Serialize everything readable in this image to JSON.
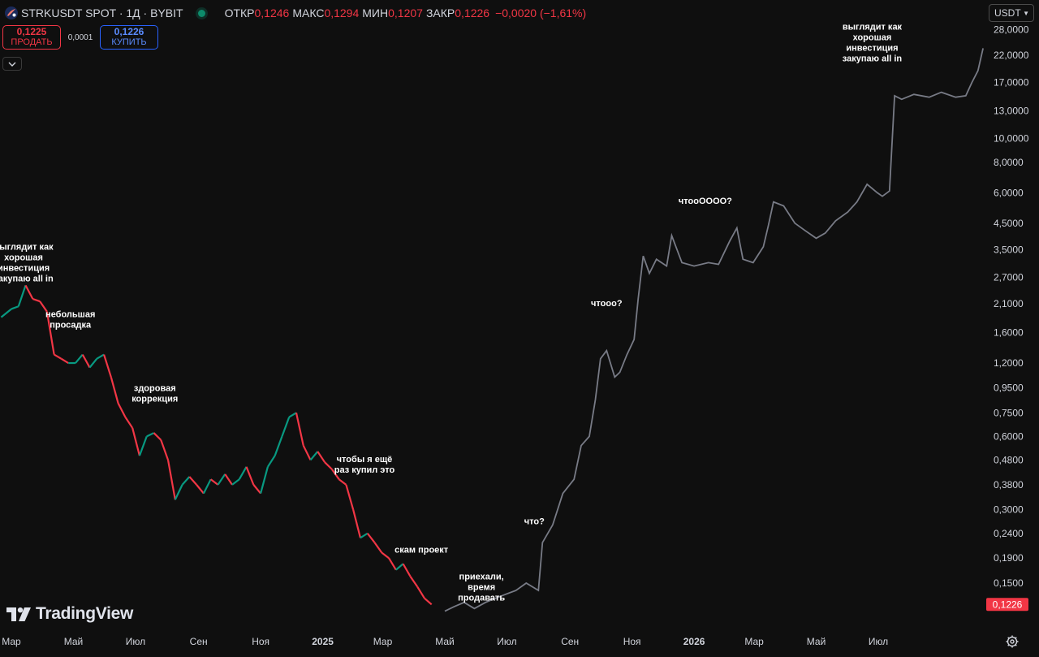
{
  "header": {
    "symbol": "STRKUSDT SPOT · 1Д · BYBIT",
    "open_label": "ОТКР",
    "open": "0,1246",
    "high_label": "МАКС",
    "high": "0,1294",
    "low_label": "МИН",
    "low": "0,1207",
    "close_label": "ЗАКР",
    "close": "0,1226",
    "change": "−0,0020 (−1,61%)"
  },
  "trade": {
    "sell_price": "0,1225",
    "sell_label": "ПРОДАТЬ",
    "spread": "0,0001",
    "buy_price": "0,1226",
    "buy_label": "КУПИТЬ"
  },
  "currency": "USDT",
  "brand": "TradingView",
  "colors": {
    "up": "#089981",
    "down": "#f23645",
    "projection": "#787b86",
    "background": "#0f0f0f",
    "text": "#d1d4dc"
  },
  "chart_data": {
    "type": "line",
    "scale": "log",
    "grid": false,
    "y_ticks": [
      {
        "v": 28,
        "label": "28,0000"
      },
      {
        "v": 22,
        "label": "22,0000"
      },
      {
        "v": 17,
        "label": "17,0000"
      },
      {
        "v": 13,
        "label": "13,0000"
      },
      {
        "v": 10,
        "label": "10,0000"
      },
      {
        "v": 8,
        "label": "8,0000"
      },
      {
        "v": 6,
        "label": "6,0000"
      },
      {
        "v": 4.5,
        "label": "4,5000"
      },
      {
        "v": 3.5,
        "label": "3,5000"
      },
      {
        "v": 2.7,
        "label": "2,7000"
      },
      {
        "v": 2.1,
        "label": "2,1000"
      },
      {
        "v": 1.6,
        "label": "1,6000"
      },
      {
        "v": 1.2,
        "label": "1,2000"
      },
      {
        "v": 0.95,
        "label": "0,9500"
      },
      {
        "v": 0.75,
        "label": "0,7500"
      },
      {
        "v": 0.6,
        "label": "0,6000"
      },
      {
        "v": 0.48,
        "label": "0,4800"
      },
      {
        "v": 0.38,
        "label": "0,3800"
      },
      {
        "v": 0.3,
        "label": "0,3000"
      },
      {
        "v": 0.24,
        "label": "0,2400"
      },
      {
        "v": 0.19,
        "label": "0,1900"
      },
      {
        "v": 0.15,
        "label": "0,1500"
      }
    ],
    "current_price": {
      "v": 0.1226,
      "label": "0,1226"
    },
    "x_ticks": [
      {
        "label": "Мар",
        "date": "2024-03-01",
        "bold": false
      },
      {
        "label": "Май",
        "date": "2024-05-01",
        "bold": false
      },
      {
        "label": "Июл",
        "date": "2024-07-01",
        "bold": false
      },
      {
        "label": "Сен",
        "date": "2024-09-01",
        "bold": false
      },
      {
        "label": "Ноя",
        "date": "2024-11-01",
        "bold": false
      },
      {
        "label": "2025",
        "date": "2025-01-01",
        "bold": true
      },
      {
        "label": "Мар",
        "date": "2025-03-01",
        "bold": false
      },
      {
        "label": "Май",
        "date": "2025-05-01",
        "bold": false
      },
      {
        "label": "Июл",
        "date": "2025-07-01",
        "bold": false
      },
      {
        "label": "Сен",
        "date": "2025-09-01",
        "bold": false
      },
      {
        "label": "Ноя",
        "date": "2025-11-01",
        "bold": false
      },
      {
        "label": "2026",
        "date": "2026-01-01",
        "bold": true
      },
      {
        "label": "Мар",
        "date": "2026-03-01",
        "bold": false
      },
      {
        "label": "Май",
        "date": "2026-05-01",
        "bold": false
      },
      {
        "label": "Июл",
        "date": "2026-07-01",
        "bold": false
      }
    ],
    "price_series": [
      [
        "2024-02-20",
        1.85
      ],
      [
        "2024-03-01",
        2.0
      ],
      [
        "2024-03-08",
        2.05
      ],
      [
        "2024-03-15",
        2.5
      ],
      [
        "2024-03-22",
        2.2
      ],
      [
        "2024-03-29",
        2.15
      ],
      [
        "2024-04-05",
        1.95
      ],
      [
        "2024-04-12",
        1.3
      ],
      [
        "2024-04-19",
        1.25
      ],
      [
        "2024-04-26",
        1.2
      ],
      [
        "2024-05-03",
        1.2
      ],
      [
        "2024-05-10",
        1.3
      ],
      [
        "2024-05-17",
        1.15
      ],
      [
        "2024-05-24",
        1.25
      ],
      [
        "2024-05-31",
        1.3
      ],
      [
        "2024-06-07",
        1.05
      ],
      [
        "2024-06-14",
        0.82
      ],
      [
        "2024-06-21",
        0.72
      ],
      [
        "2024-06-28",
        0.65
      ],
      [
        "2024-07-05",
        0.5
      ],
      [
        "2024-07-12",
        0.6
      ],
      [
        "2024-07-19",
        0.62
      ],
      [
        "2024-07-26",
        0.58
      ],
      [
        "2024-08-02",
        0.48
      ],
      [
        "2024-08-09",
        0.33
      ],
      [
        "2024-08-16",
        0.38
      ],
      [
        "2024-08-23",
        0.41
      ],
      [
        "2024-08-30",
        0.38
      ],
      [
        "2024-09-06",
        0.35
      ],
      [
        "2024-09-13",
        0.4
      ],
      [
        "2024-09-20",
        0.38
      ],
      [
        "2024-09-27",
        0.42
      ],
      [
        "2024-10-04",
        0.38
      ],
      [
        "2024-10-11",
        0.4
      ],
      [
        "2024-10-18",
        0.45
      ],
      [
        "2024-10-25",
        0.38
      ],
      [
        "2024-11-01",
        0.35
      ],
      [
        "2024-11-08",
        0.45
      ],
      [
        "2024-11-15",
        0.5
      ],
      [
        "2024-11-22",
        0.6
      ],
      [
        "2024-11-29",
        0.72
      ],
      [
        "2024-12-06",
        0.75
      ],
      [
        "2024-12-13",
        0.55
      ],
      [
        "2024-12-20",
        0.48
      ],
      [
        "2024-12-27",
        0.52
      ],
      [
        "2025-01-03",
        0.47
      ],
      [
        "2025-01-10",
        0.44
      ],
      [
        "2025-01-17",
        0.4
      ],
      [
        "2025-01-24",
        0.38
      ],
      [
        "2025-01-31",
        0.3
      ],
      [
        "2025-02-07",
        0.23
      ],
      [
        "2025-02-14",
        0.24
      ],
      [
        "2025-02-21",
        0.22
      ],
      [
        "2025-02-28",
        0.2
      ],
      [
        "2025-03-07",
        0.19
      ],
      [
        "2025-03-14",
        0.17
      ],
      [
        "2025-03-21",
        0.18
      ],
      [
        "2025-03-28",
        0.16
      ],
      [
        "2025-04-04",
        0.145
      ],
      [
        "2025-04-11",
        0.13
      ],
      [
        "2025-04-18",
        0.1226
      ]
    ],
    "projection_series": [
      [
        "2025-05-01",
        0.115
      ],
      [
        "2025-05-10",
        0.12
      ],
      [
        "2025-05-20",
        0.125
      ],
      [
        "2025-05-30",
        0.118
      ],
      [
        "2025-06-10",
        0.125
      ],
      [
        "2025-06-20",
        0.13
      ],
      [
        "2025-06-30",
        0.135
      ],
      [
        "2025-07-10",
        0.14
      ],
      [
        "2025-07-20",
        0.15
      ],
      [
        "2025-08-01",
        0.14
      ],
      [
        "2025-08-05",
        0.22
      ],
      [
        "2025-08-15",
        0.26
      ],
      [
        "2025-08-25",
        0.35
      ],
      [
        "2025-09-05",
        0.4
      ],
      [
        "2025-09-12",
        0.55
      ],
      [
        "2025-09-20",
        0.6
      ],
      [
        "2025-09-26",
        0.85
      ],
      [
        "2025-10-01",
        1.25
      ],
      [
        "2025-10-07",
        1.35
      ],
      [
        "2025-10-15",
        1.05
      ],
      [
        "2025-10-20",
        1.1
      ],
      [
        "2025-10-27",
        1.3
      ],
      [
        "2025-11-03",
        1.5
      ],
      [
        "2025-11-07",
        2.2
      ],
      [
        "2025-11-12",
        3.3
      ],
      [
        "2025-11-18",
        2.8
      ],
      [
        "2025-11-25",
        3.2
      ],
      [
        "2025-12-05",
        3.0
      ],
      [
        "2025-12-10",
        4.0
      ],
      [
        "2025-12-20",
        3.1
      ],
      [
        "2026-01-01",
        3.0
      ],
      [
        "2026-01-15",
        3.1
      ],
      [
        "2026-01-25",
        3.05
      ],
      [
        "2026-02-05",
        3.8
      ],
      [
        "2026-02-12",
        4.3
      ],
      [
        "2026-02-18",
        3.2
      ],
      [
        "2026-02-28",
        3.1
      ],
      [
        "2026-03-10",
        3.6
      ],
      [
        "2026-03-15",
        4.4
      ],
      [
        "2026-03-20",
        5.5
      ],
      [
        "2026-03-30",
        5.3
      ],
      [
        "2026-04-10",
        4.5
      ],
      [
        "2026-04-20",
        4.2
      ],
      [
        "2026-05-01",
        3.9
      ],
      [
        "2026-05-10",
        4.1
      ],
      [
        "2026-05-20",
        4.6
      ],
      [
        "2026-06-01",
        5.0
      ],
      [
        "2026-06-10",
        5.5
      ],
      [
        "2026-06-20",
        6.5
      ],
      [
        "2026-06-30",
        6.0
      ],
      [
        "2026-07-05",
        5.8
      ],
      [
        "2026-07-12",
        6.1
      ],
      [
        "2026-07-17",
        15.0
      ],
      [
        "2026-07-24",
        14.5
      ],
      [
        "2026-08-05",
        15.2
      ],
      [
        "2026-08-20",
        14.8
      ],
      [
        "2026-09-01",
        15.5
      ],
      [
        "2026-09-15",
        14.8
      ],
      [
        "2026-09-25",
        15.0
      ],
      [
        "2026-10-01",
        17.0
      ],
      [
        "2026-10-07",
        19.0
      ],
      [
        "2026-10-12",
        23.5
      ]
    ],
    "annotations": [
      {
        "date": "2024-03-13",
        "value": 3.5,
        "lines": [
          "выглядит как",
          "хорошая",
          "инвестиция",
          "закупаю all in"
        ]
      },
      {
        "date": "2024-04-28",
        "value": 1.85,
        "lines": [
          "небольшая",
          "просадка"
        ]
      },
      {
        "date": "2024-07-20",
        "value": 0.92,
        "lines": [
          "здоровая",
          "коррекция"
        ]
      },
      {
        "date": "2025-02-11",
        "value": 0.47,
        "lines": [
          "чтобы я ещё",
          "раз купил это"
        ]
      },
      {
        "date": "2025-04-08",
        "value": 0.2,
        "lines": [
          "скам проект"
        ]
      },
      {
        "date": "2025-06-06",
        "value": 0.155,
        "lines": [
          "приехали,",
          "время",
          "продавать"
        ]
      },
      {
        "date": "2025-07-28",
        "value": 0.262,
        "lines": [
          "что?"
        ]
      },
      {
        "date": "2025-10-07",
        "value": 2.05,
        "lines": [
          "чтооо?"
        ]
      },
      {
        "date": "2026-01-12",
        "value": 5.4,
        "lines": [
          "чтооОООО?"
        ]
      },
      {
        "date": "2026-06-25",
        "value": 28.0,
        "lines": [
          "выглядит как",
          "хорошая",
          "инвестиция",
          "закупаю all in"
        ]
      }
    ]
  }
}
